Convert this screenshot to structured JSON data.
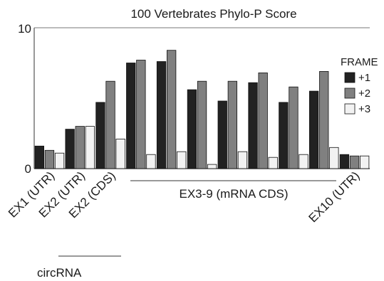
{
  "chart_data": {
    "type": "bar",
    "title": "100 Vertebrates Phylo-P Score",
    "ylim": [
      0,
      10
    ],
    "y_ticks": [
      "0",
      "10"
    ],
    "legend_title": "FRAME",
    "legend_position": "right",
    "categories": [
      "EX1 (UTR)",
      "EX2 (UTR)",
      "EX2 (CDS)",
      "",
      "",
      "",
      "",
      "",
      "",
      "",
      "EX10 (UTR)"
    ],
    "series": [
      {
        "name": "+1",
        "color": "#222222",
        "values": [
          1.6,
          2.8,
          4.7,
          7.5,
          7.6,
          5.6,
          4.8,
          6.1,
          4.7,
          5.5,
          1.0
        ]
      },
      {
        "name": "+2",
        "color": "#808080",
        "values": [
          1.3,
          3.0,
          6.2,
          7.7,
          8.4,
          6.2,
          6.2,
          6.8,
          5.8,
          6.9,
          0.9
        ]
      },
      {
        "name": "+3",
        "color": "#f2f2f2",
        "values": [
          1.1,
          3.0,
          2.1,
          1.0,
          1.2,
          0.3,
          1.2,
          0.8,
          1.0,
          1.5,
          0.9
        ]
      }
    ],
    "group_annotations": [
      {
        "label": "EX3-9 (mRNA CDS)"
      },
      {
        "label": "circRNA"
      }
    ]
  }
}
